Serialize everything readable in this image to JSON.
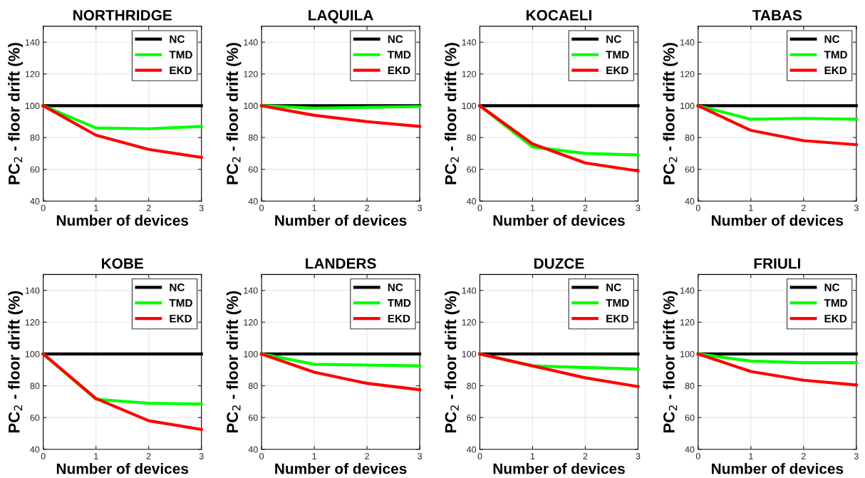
{
  "chart_data": [
    {
      "type": "line",
      "title": "NORTHRIDGE",
      "xlabel": "Number of devices",
      "ylabel": "PC$_{2}$ - floor drift (%)",
      "x": [
        0,
        1,
        2,
        3
      ],
      "xlim": [
        0,
        3
      ],
      "xticks": [
        0,
        1,
        2,
        3
      ],
      "ylim": [
        40,
        150
      ],
      "yticks": [
        40,
        60,
        80,
        100,
        120,
        140
      ],
      "grid": true,
      "legend": "top right",
      "series": [
        {
          "name": "NC",
          "color": "#000000",
          "values": [
            100,
            100,
            100,
            100
          ]
        },
        {
          "name": "TMD",
          "color": "#00ff00",
          "values": [
            100,
            86,
            85.5,
            87
          ]
        },
        {
          "name": "EKD",
          "color": "#ff0000",
          "values": [
            100,
            81.5,
            72.5,
            67.5
          ]
        }
      ]
    },
    {
      "type": "line",
      "title": "LAQUILA",
      "xlabel": "Number of devices",
      "ylabel": "PC$_{2}$ - floor drift (%)",
      "x": [
        0,
        1,
        2,
        3
      ],
      "xlim": [
        0,
        3
      ],
      "xticks": [
        0,
        1,
        2,
        3
      ],
      "ylim": [
        40,
        150
      ],
      "yticks": [
        40,
        60,
        80,
        100,
        120,
        140
      ],
      "grid": true,
      "legend": "top right",
      "series": [
        {
          "name": "NC",
          "color": "#000000",
          "values": [
            100,
            100,
            100,
            100
          ]
        },
        {
          "name": "TMD",
          "color": "#00ff00",
          "values": [
            100,
            98.5,
            99,
            99.5
          ]
        },
        {
          "name": "EKD",
          "color": "#ff0000",
          "values": [
            100,
            94,
            90,
            87
          ]
        }
      ]
    },
    {
      "type": "line",
      "title": "KOCAELI",
      "xlabel": "Number of devices",
      "ylabel": "PC$_{2}$ - floor drift (%)",
      "x": [
        0,
        1,
        2,
        3
      ],
      "xlim": [
        0,
        3
      ],
      "xticks": [
        0,
        1,
        2,
        3
      ],
      "ylim": [
        40,
        150
      ],
      "yticks": [
        40,
        60,
        80,
        100,
        120,
        140
      ],
      "grid": true,
      "legend": "top right",
      "series": [
        {
          "name": "NC",
          "color": "#000000",
          "values": [
            100,
            100,
            100,
            100
          ]
        },
        {
          "name": "TMD",
          "color": "#00ff00",
          "values": [
            100,
            74,
            70,
            69
          ]
        },
        {
          "name": "EKD",
          "color": "#ff0000",
          "values": [
            100,
            76,
            64,
            59
          ]
        }
      ]
    },
    {
      "type": "line",
      "title": "TABAS",
      "xlabel": "Number of devices",
      "ylabel": "PC$_{2}$ - floor drift (%)",
      "x": [
        0,
        1,
        2,
        3
      ],
      "xlim": [
        0,
        3
      ],
      "xticks": [
        0,
        1,
        2,
        3
      ],
      "ylim": [
        40,
        150
      ],
      "yticks": [
        40,
        60,
        80,
        100,
        120,
        140
      ],
      "grid": true,
      "legend": "top right",
      "series": [
        {
          "name": "NC",
          "color": "#000000",
          "values": [
            100,
            100,
            100,
            100
          ]
        },
        {
          "name": "TMD",
          "color": "#00ff00",
          "values": [
            100,
            91.5,
            92,
            91.5
          ]
        },
        {
          "name": "EKD",
          "color": "#ff0000",
          "values": [
            100,
            84.5,
            78,
            75.5
          ]
        }
      ]
    },
    {
      "type": "line",
      "title": "KOBE",
      "xlabel": "Number of devices",
      "ylabel": "PC$_{2}$ - floor drift (%)",
      "x": [
        0,
        1,
        2,
        3
      ],
      "xlim": [
        0,
        3
      ],
      "xticks": [
        0,
        1,
        2,
        3
      ],
      "ylim": [
        40,
        150
      ],
      "yticks": [
        40,
        60,
        80,
        100,
        120,
        140
      ],
      "grid": true,
      "legend": "top right",
      "series": [
        {
          "name": "NC",
          "color": "#000000",
          "values": [
            100,
            100,
            100,
            100
          ]
        },
        {
          "name": "TMD",
          "color": "#00ff00",
          "values": [
            100,
            71.5,
            69,
            68.5
          ]
        },
        {
          "name": "EKD",
          "color": "#ff0000",
          "values": [
            100,
            72,
            58,
            52.5
          ]
        }
      ]
    },
    {
      "type": "line",
      "title": "LANDERS",
      "xlabel": "Number of devices",
      "ylabel": "PC$_{2}$ - floor drift (%)",
      "x": [
        0,
        1,
        2,
        3
      ],
      "xlim": [
        0,
        3
      ],
      "xticks": [
        0,
        1,
        2,
        3
      ],
      "ylim": [
        40,
        150
      ],
      "yticks": [
        40,
        60,
        80,
        100,
        120,
        140
      ],
      "grid": true,
      "legend": "top right",
      "series": [
        {
          "name": "NC",
          "color": "#000000",
          "values": [
            100,
            100,
            100,
            100
          ]
        },
        {
          "name": "TMD",
          "color": "#00ff00",
          "values": [
            100,
            93.5,
            93,
            92.5
          ]
        },
        {
          "name": "EKD",
          "color": "#ff0000",
          "values": [
            100,
            88.5,
            81.5,
            77.5
          ]
        }
      ]
    },
    {
      "type": "line",
      "title": "DUZCE",
      "xlabel": "Number of devices",
      "ylabel": "PC$_{2}$ - floor drift (%)",
      "x": [
        0,
        1,
        2,
        3
      ],
      "xlim": [
        0,
        3
      ],
      "xticks": [
        0,
        1,
        2,
        3
      ],
      "ylim": [
        40,
        150
      ],
      "yticks": [
        40,
        60,
        80,
        100,
        120,
        140
      ],
      "grid": true,
      "legend": "top right",
      "series": [
        {
          "name": "NC",
          "color": "#000000",
          "values": [
            100,
            100,
            100,
            100
          ]
        },
        {
          "name": "TMD",
          "color": "#00ff00",
          "values": [
            100,
            92.5,
            91.5,
            90.5
          ]
        },
        {
          "name": "EKD",
          "color": "#ff0000",
          "values": [
            100,
            92.5,
            85,
            79.5
          ]
        }
      ]
    },
    {
      "type": "line",
      "title": "FRIULI",
      "xlabel": "Number of devices",
      "ylabel": "PC$_{2}$ - floor drift (%)",
      "x": [
        0,
        1,
        2,
        3
      ],
      "xlim": [
        0,
        3
      ],
      "xticks": [
        0,
        1,
        2,
        3
      ],
      "ylim": [
        40,
        150
      ],
      "yticks": [
        40,
        60,
        80,
        100,
        120,
        140
      ],
      "grid": true,
      "legend": "top right",
      "series": [
        {
          "name": "NC",
          "color": "#000000",
          "values": [
            100,
            100,
            100,
            100
          ]
        },
        {
          "name": "TMD",
          "color": "#00ff00",
          "values": [
            100,
            95.5,
            94.5,
            94.5
          ]
        },
        {
          "name": "EKD",
          "color": "#ff0000",
          "values": [
            100,
            89,
            83.5,
            80.5
          ]
        }
      ]
    }
  ]
}
